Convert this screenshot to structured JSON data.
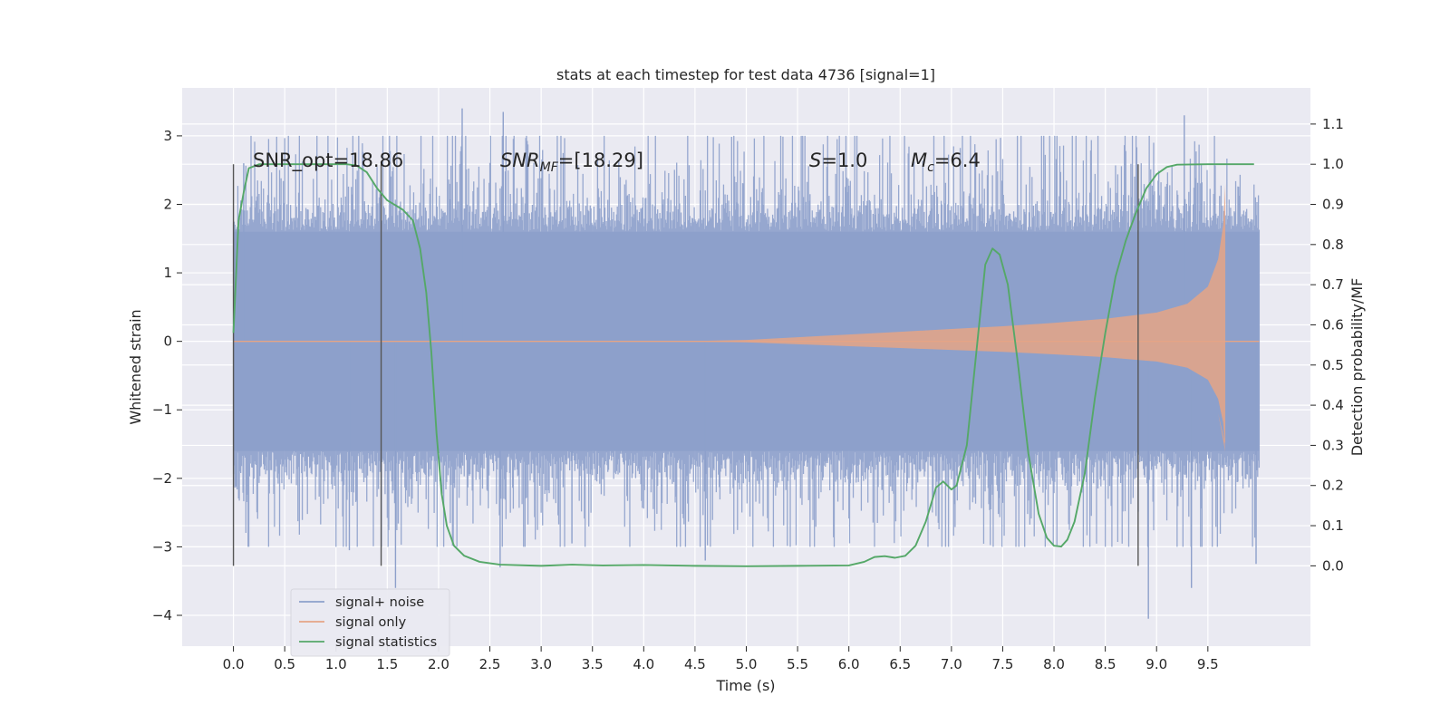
{
  "chart_data": {
    "type": "line",
    "title": "stats at each timestep for test data 4736 [signal=1]",
    "xlabel": "Time (s)",
    "ylabel": "Whitened strain",
    "y2label": "Detection probability/MF",
    "xlim": [
      -0.5,
      10.5
    ],
    "ylim": [
      -4.45,
      3.7
    ],
    "y2lim": [
      -0.2,
      1.19
    ],
    "x_ticks": [
      "0.0",
      "0.5",
      "1.0",
      "1.5",
      "2.0",
      "2.5",
      "3.0",
      "3.5",
      "4.0",
      "4.5",
      "5.0",
      "5.5",
      "6.0",
      "6.5",
      "7.0",
      "7.5",
      "8.0",
      "8.5",
      "9.0",
      "9.5"
    ],
    "y_ticks": [
      "3",
      "2",
      "1",
      "0",
      "−1",
      "−2",
      "−3",
      "−4"
    ],
    "y2_ticks": [
      "1.1",
      "1.0",
      "0.9",
      "0.8",
      "0.7",
      "0.6",
      "0.5",
      "0.4",
      "0.3",
      "0.2",
      "0.1",
      "0.0"
    ],
    "grid": true,
    "legend_position": "lower-left",
    "annotations": {
      "snr_opt": "SNR_opt=18.86",
      "snr_mf_a": "SNR",
      "snr_mf_sub": "MF",
      "snr_mf_b": "=[18.29]",
      "s_a": "S",
      "s_b": "=1.0",
      "mc_a": "M",
      "mc_sub": "c",
      "mc_b": "=6.4"
    },
    "vertical_lines_x": [
      0.0,
      1.44,
      8.82
    ],
    "series": [
      {
        "name": "signal+ noise",
        "color": "#8da0cb",
        "kind": "noise",
        "duration": 10.0,
        "sigma": 0.75,
        "envelope": [
          -1.6,
          1.6
        ],
        "spikes": [
          {
            "x": 2.23,
            "y": 3.4
          },
          {
            "x": 2.63,
            "y": 3.35
          },
          {
            "x": 1.58,
            "y": -3.6
          },
          {
            "x": 8.92,
            "y": -4.05
          },
          {
            "x": 9.27,
            "y": 3.3
          },
          {
            "x": 9.34,
            "y": -3.6
          },
          {
            "x": 4.6,
            "y": -3.2
          },
          {
            "x": 2.6,
            "y": -3.3
          },
          {
            "x": 9.97,
            "y": -3.25
          },
          {
            "x": 0.1,
            "y": 2.6
          },
          {
            "x": 1.13,
            "y": -3.05
          },
          {
            "x": 3.3,
            "y": -2.95
          }
        ]
      },
      {
        "name": "signal only",
        "color": "#e5a486",
        "kind": "chirp",
        "t_merge": 9.67,
        "end": 10.0,
        "points": [
          {
            "t": 0.0,
            "amp": 0.0
          },
          {
            "t": 4.5,
            "amp": 0.005
          },
          {
            "t": 5.0,
            "amp": 0.02
          },
          {
            "t": 5.5,
            "amp": 0.06
          },
          {
            "t": 6.0,
            "amp": 0.1
          },
          {
            "t": 6.5,
            "amp": 0.14
          },
          {
            "t": 7.0,
            "amp": 0.18
          },
          {
            "t": 7.5,
            "amp": 0.22
          },
          {
            "t": 8.0,
            "amp": 0.27
          },
          {
            "t": 8.5,
            "amp": 0.33
          },
          {
            "t": 9.0,
            "amp": 0.42
          },
          {
            "t": 9.3,
            "amp": 0.55
          },
          {
            "t": 9.5,
            "amp": 0.8
          },
          {
            "t": 9.6,
            "amp": 1.2
          },
          {
            "t": 9.65,
            "amp": 1.7
          },
          {
            "t": 9.67,
            "amp": 2.3
          }
        ]
      },
      {
        "name": "signal statistics",
        "color": "#55a868",
        "axis": "right",
        "points": [
          [
            0.0,
            0.58
          ],
          [
            0.05,
            0.86
          ],
          [
            0.1,
            0.93
          ],
          [
            0.15,
            0.99
          ],
          [
            0.25,
            1.0
          ],
          [
            0.5,
            1.0
          ],
          [
            0.8,
            1.0
          ],
          [
            1.0,
            1.0
          ],
          [
            1.1,
            1.0
          ],
          [
            1.2,
            0.997
          ],
          [
            1.3,
            0.98
          ],
          [
            1.4,
            0.94
          ],
          [
            1.5,
            0.91
          ],
          [
            1.65,
            0.887
          ],
          [
            1.75,
            0.86
          ],
          [
            1.82,
            0.79
          ],
          [
            1.88,
            0.68
          ],
          [
            1.93,
            0.53
          ],
          [
            1.98,
            0.33
          ],
          [
            2.03,
            0.18
          ],
          [
            2.08,
            0.1
          ],
          [
            2.15,
            0.05
          ],
          [
            2.25,
            0.025
          ],
          [
            2.4,
            0.01
          ],
          [
            2.6,
            0.003
          ],
          [
            3.0,
            0.0
          ],
          [
            3.3,
            0.003
          ],
          [
            3.6,
            0.001
          ],
          [
            4.0,
            0.002
          ],
          [
            4.5,
            0.0
          ],
          [
            5.0,
            -0.001
          ],
          [
            5.5,
            0.0
          ],
          [
            6.0,
            0.001
          ],
          [
            6.15,
            0.01
          ],
          [
            6.25,
            0.022
          ],
          [
            6.35,
            0.024
          ],
          [
            6.45,
            0.02
          ],
          [
            6.55,
            0.025
          ],
          [
            6.65,
            0.05
          ],
          [
            6.75,
            0.11
          ],
          [
            6.85,
            0.195
          ],
          [
            6.92,
            0.21
          ],
          [
            7.0,
            0.19
          ],
          [
            7.05,
            0.2
          ],
          [
            7.15,
            0.3
          ],
          [
            7.25,
            0.55
          ],
          [
            7.33,
            0.75
          ],
          [
            7.4,
            0.79
          ],
          [
            7.47,
            0.775
          ],
          [
            7.55,
            0.7
          ],
          [
            7.65,
            0.5
          ],
          [
            7.75,
            0.28
          ],
          [
            7.85,
            0.13
          ],
          [
            7.93,
            0.07
          ],
          [
            8.0,
            0.05
          ],
          [
            8.07,
            0.048
          ],
          [
            8.13,
            0.065
          ],
          [
            8.2,
            0.11
          ],
          [
            8.3,
            0.23
          ],
          [
            8.4,
            0.42
          ],
          [
            8.5,
            0.58
          ],
          [
            8.6,
            0.72
          ],
          [
            8.7,
            0.81
          ],
          [
            8.8,
            0.88
          ],
          [
            8.9,
            0.94
          ],
          [
            9.0,
            0.975
          ],
          [
            9.1,
            0.993
          ],
          [
            9.2,
            0.999
          ],
          [
            9.5,
            1.0
          ],
          [
            9.95,
            1.0
          ]
        ]
      }
    ]
  }
}
